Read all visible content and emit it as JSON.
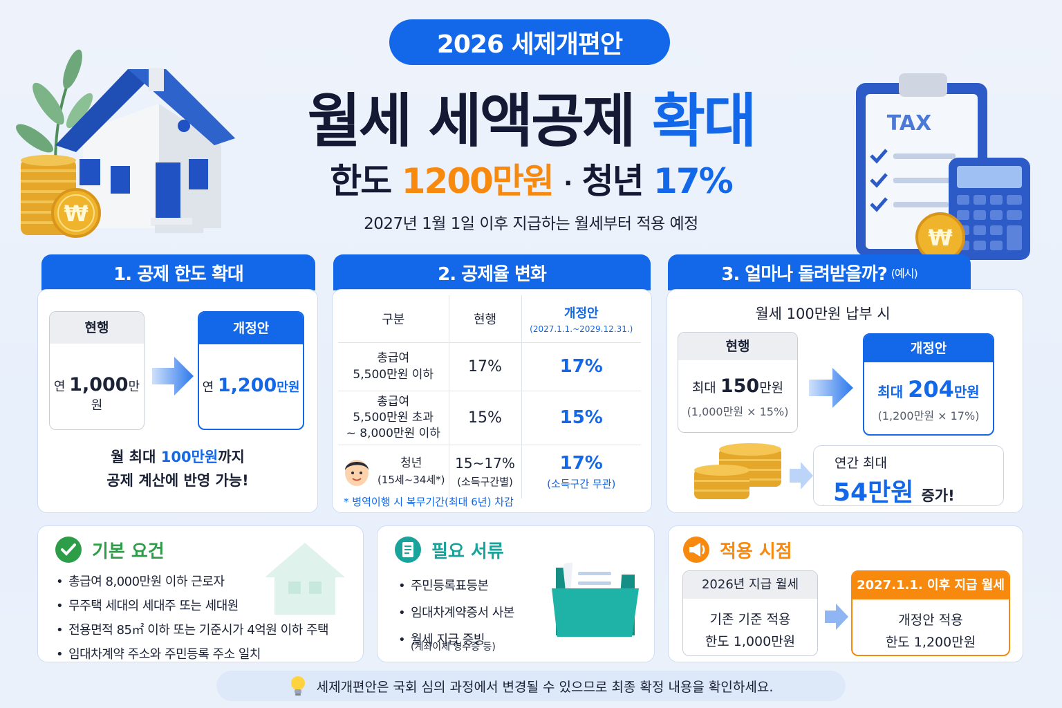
{
  "header": {
    "badge": "2026 세제개편안",
    "title_main": "월세 세액공제",
    "title_accent": "확대",
    "sub_a": "한도",
    "sub_limit": "1200만원",
    "sub_dot": "·",
    "sub_b": "청년",
    "sub_rate": "17%",
    "note": "2027년 1월 1일 이후 지급하는 월세부터 적용 예정"
  },
  "deco": {
    "tax_label": "TAX",
    "won_symbol": "₩"
  },
  "section1": {
    "title": "1. 공제 한도 확대",
    "current_label": "현행",
    "current_prefix": "연",
    "current_value": "1,000",
    "current_unit": "만원",
    "new_label": "개정안",
    "new_prefix": "연",
    "new_value": "1,200",
    "new_unit": "만원",
    "note_a": "월 최대",
    "note_value": "100만원",
    "note_b": "까지",
    "note_line2": "공제 계산에 반영 가능!"
  },
  "section2": {
    "title": "2. 공제율 변화",
    "col_header": [
      "구분",
      "현행",
      "개정안"
    ],
    "col_header_sub": "(2027.1.1.~2029.12.31.)",
    "rows": [
      {
        "label": [
          "총급여",
          "5,500만원 이하"
        ],
        "current": "17%",
        "new": "17%"
      },
      {
        "label": [
          "총급여",
          "5,500만원 초과",
          "~ 8,000만원 이하"
        ],
        "current": "15%",
        "new": "15%"
      },
      {
        "label": [
          "청년",
          "(15세~34세*)"
        ],
        "current": "15~17%",
        "current_sub": "(소득구간별)",
        "new": "17%",
        "new_sub": "(소득구간 무관)"
      }
    ],
    "footnote": "* 병역이행 시 복무기간(최대 6년) 차감"
  },
  "section3": {
    "title": "3. 얼마나 돌려받을까?",
    "title_suffix": "(예시)",
    "scenario": "월세 100만원 납부 시",
    "current_label": "현행",
    "current_prefix": "최대",
    "current_value": "150",
    "current_unit": "만원",
    "current_formula": "(1,000만원 × 15%)",
    "new_label": "개정안",
    "new_prefix": "최대",
    "new_value": "204",
    "new_unit": "만원",
    "new_formula": "(1,200만원 × 17%)",
    "gain_label": "연간 최대",
    "gain_value": "54만원",
    "gain_suffix": "증가!"
  },
  "requirements": {
    "title": "기본 요건",
    "items": [
      "총급여 8,000만원 이하 근로자",
      "무주택 세대의 세대주 또는 세대원",
      "전용면적 85㎡ 이하 또는 기준시가 4억원 이하 주택",
      "임대차계약 주소와 주민등록 주소 일치"
    ]
  },
  "documents": {
    "title": "필요 서류",
    "items": [
      "주민등록표등본",
      "임대차계약증서 사본",
      "월세 지급 증빙"
    ],
    "item_sub": "(계좌이체 영수증 등)"
  },
  "timing": {
    "title": "적용 시점",
    "old_label": "2026년 지급 월세",
    "old_line1": "기존 기준 적용",
    "old_line2": "한도 1,000만원",
    "new_label": "2027.1.1. 이후 지급 월세",
    "new_line1": "개정안 적용",
    "new_line2": "한도 1,200만원"
  },
  "footer": {
    "text": "세제개편안은 국회 심의 과정에서 변경될 수 있으므로 최종 확정 내용을 확인하세요."
  },
  "colors": {
    "primary": "#1268e8",
    "accent": "#f7890f",
    "success": "#2e9d47",
    "teal": "#1aa39a"
  }
}
